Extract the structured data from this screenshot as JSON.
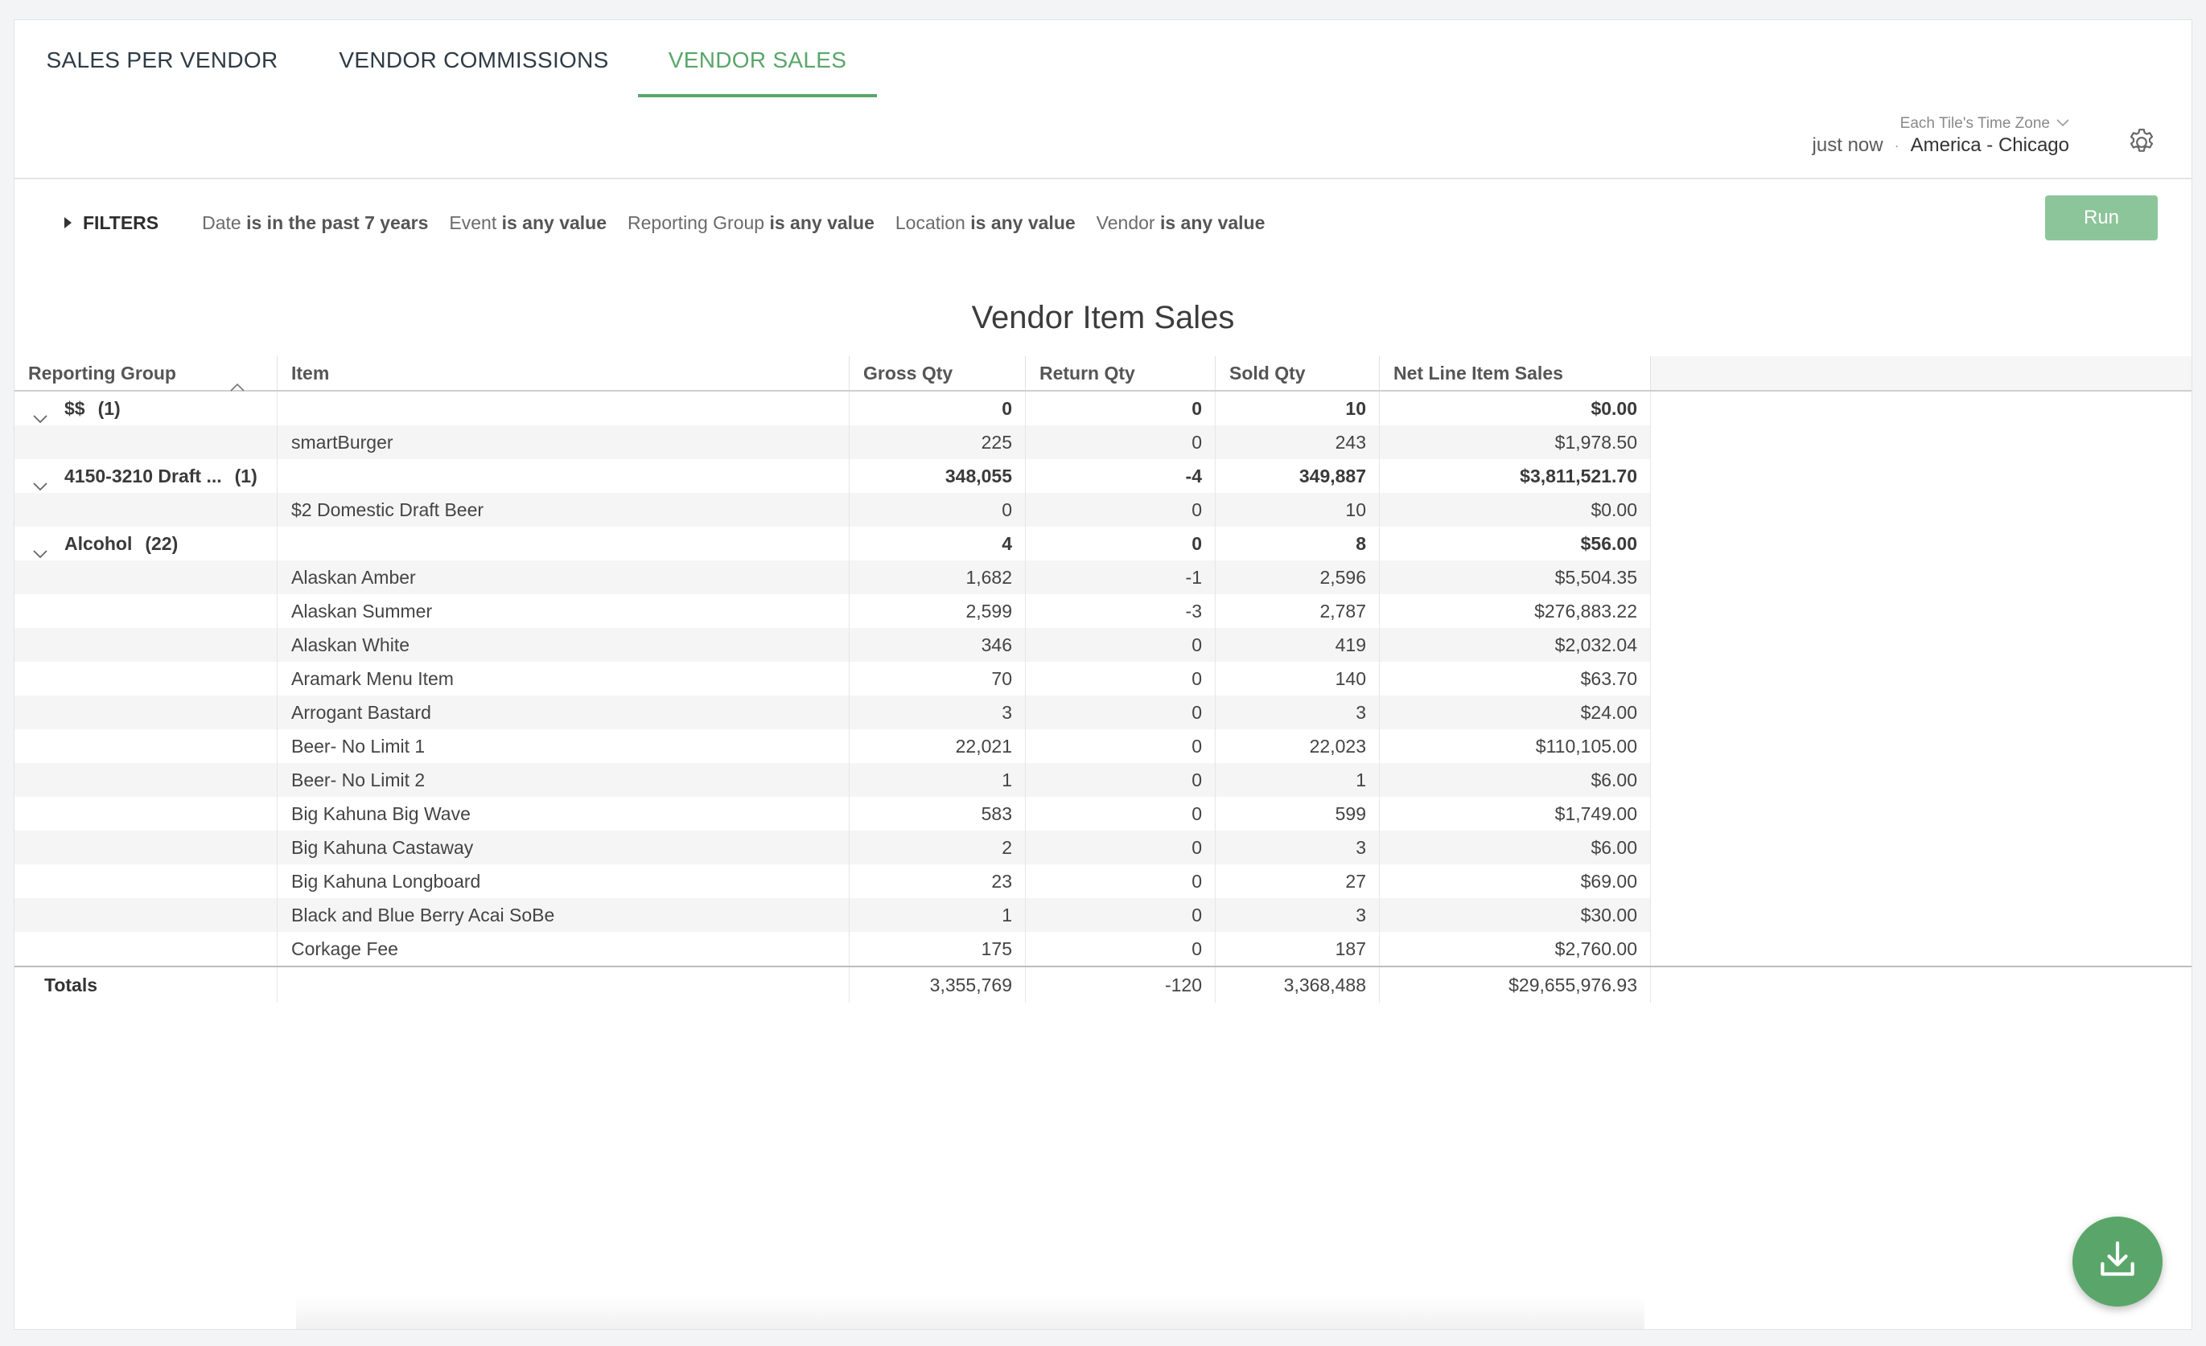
{
  "tabs": [
    {
      "label": "SALES PER VENDOR",
      "active": false
    },
    {
      "label": "VENDOR COMMISSIONS",
      "active": false
    },
    {
      "label": "VENDOR SALES",
      "active": true
    }
  ],
  "header": {
    "timezone_label": "Each Tile's Time Zone",
    "refreshed": "just now",
    "separator": "·",
    "timezone_value": "America - Chicago",
    "settings_icon": "gear-icon"
  },
  "filters": {
    "toggle_label": "FILTERS",
    "items": [
      {
        "field": "Date",
        "condition": "is in the past 7 years"
      },
      {
        "field": "Event",
        "condition": "is any value"
      },
      {
        "field": "Reporting Group",
        "condition": "is any value"
      },
      {
        "field": "Location",
        "condition": "is any value"
      },
      {
        "field": "Vendor",
        "condition": "is any value"
      }
    ],
    "run_label": "Run"
  },
  "report": {
    "title": "Vendor Item Sales",
    "columns": [
      "Reporting Group",
      "Item",
      "Gross Qty",
      "Return Qty",
      "Sold Qty",
      "Net Line Item Sales"
    ],
    "rows": [
      {
        "type": "group",
        "group": "$$",
        "count": "(1)",
        "item": "",
        "gross": "0",
        "ret": "0",
        "sold": "10",
        "net": "$0.00"
      },
      {
        "type": "item",
        "group": "",
        "count": "",
        "item": "smartBurger",
        "gross": "225",
        "ret": "0",
        "sold": "243",
        "net": "$1,978.50"
      },
      {
        "type": "group",
        "group": "4150-3210 Draft ...",
        "count": "(1)",
        "item": "",
        "gross": "348,055",
        "ret": "-4",
        "sold": "349,887",
        "net": "$3,811,521.70"
      },
      {
        "type": "item",
        "group": "",
        "count": "",
        "item": "$2 Domestic Draft Beer",
        "gross": "0",
        "ret": "0",
        "sold": "10",
        "net": "$0.00"
      },
      {
        "type": "group",
        "group": "Alcohol",
        "count": "(22)",
        "item": "",
        "gross": "4",
        "ret": "0",
        "sold": "8",
        "net": "$56.00"
      },
      {
        "type": "item",
        "group": "",
        "count": "",
        "item": "Alaskan Amber",
        "gross": "1,682",
        "ret": "-1",
        "sold": "2,596",
        "net": "$5,504.35"
      },
      {
        "type": "item",
        "group": "",
        "count": "",
        "item": "Alaskan Summer",
        "gross": "2,599",
        "ret": "-3",
        "sold": "2,787",
        "net": "$276,883.22"
      },
      {
        "type": "item",
        "group": "",
        "count": "",
        "item": "Alaskan White",
        "gross": "346",
        "ret": "0",
        "sold": "419",
        "net": "$2,032.04"
      },
      {
        "type": "item",
        "group": "",
        "count": "",
        "item": "Aramark Menu Item",
        "gross": "70",
        "ret": "0",
        "sold": "140",
        "net": "$63.70"
      },
      {
        "type": "item",
        "group": "",
        "count": "",
        "item": "Arrogant Bastard",
        "gross": "3",
        "ret": "0",
        "sold": "3",
        "net": "$24.00"
      },
      {
        "type": "item",
        "group": "",
        "count": "",
        "item": "Beer- No Limit 1",
        "gross": "22,021",
        "ret": "0",
        "sold": "22,023",
        "net": "$110,105.00"
      },
      {
        "type": "item",
        "group": "",
        "count": "",
        "item": "Beer- No Limit 2",
        "gross": "1",
        "ret": "0",
        "sold": "1",
        "net": "$6.00"
      },
      {
        "type": "item",
        "group": "",
        "count": "",
        "item": "Big Kahuna Big Wave",
        "gross": "583",
        "ret": "0",
        "sold": "599",
        "net": "$1,749.00"
      },
      {
        "type": "item",
        "group": "",
        "count": "",
        "item": "Big Kahuna Castaway",
        "gross": "2",
        "ret": "0",
        "sold": "3",
        "net": "$6.00"
      },
      {
        "type": "item",
        "group": "",
        "count": "",
        "item": "Big Kahuna Longboard",
        "gross": "23",
        "ret": "0",
        "sold": "27",
        "net": "$69.00"
      },
      {
        "type": "item",
        "group": "",
        "count": "",
        "item": "Black and Blue Berry Acai SoBe",
        "gross": "1",
        "ret": "0",
        "sold": "3",
        "net": "$30.00"
      },
      {
        "type": "item",
        "group": "",
        "count": "",
        "item": "Corkage Fee",
        "gross": "175",
        "ret": "0",
        "sold": "187",
        "net": "$2,760.00"
      }
    ],
    "totals": {
      "label": "Totals",
      "gross": "3,355,769",
      "ret": "-120",
      "sold": "3,368,488",
      "net": "$29,655,976.93"
    }
  },
  "download_button": {
    "icon": "download-icon"
  },
  "colors": {
    "accent": "#5aa66a",
    "run_button": "#8cc59a"
  }
}
